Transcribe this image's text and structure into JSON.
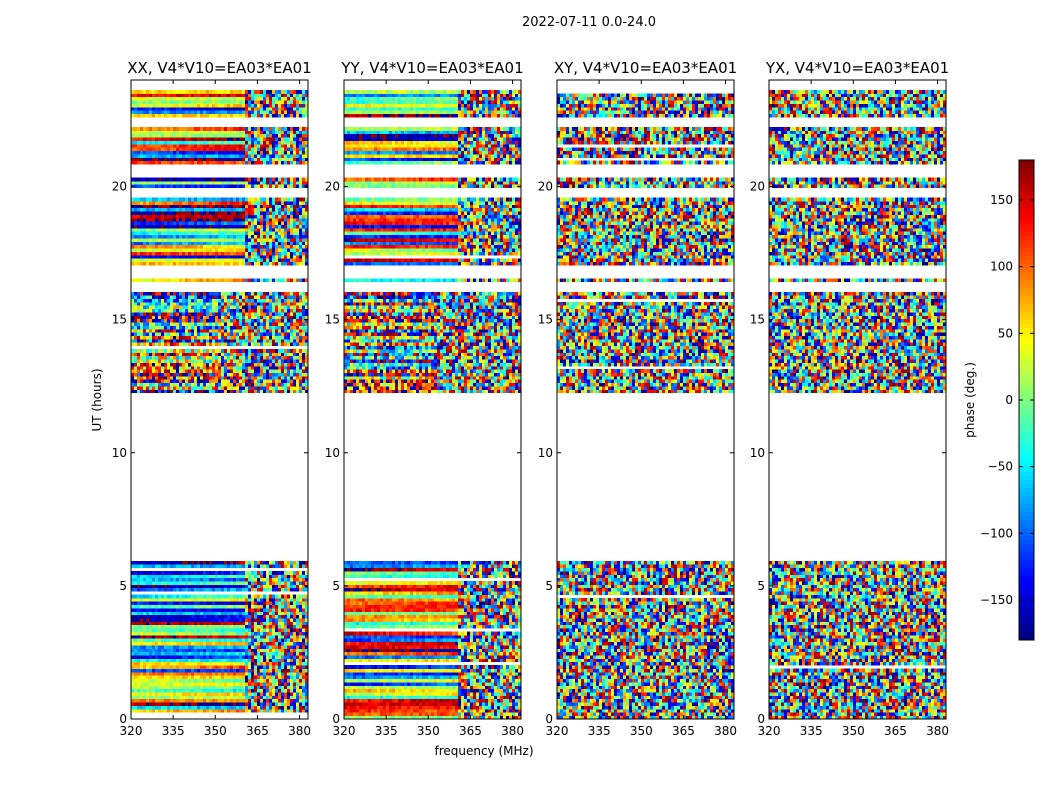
{
  "chart_data": {
    "type": "heatmap",
    "title": "2022-07-11 0.0-24.0",
    "xlabel": "frequency (MHz)",
    "ylabel": "UT (hours)",
    "xlim": [
      320,
      383
    ],
    "ylim": [
      0,
      24
    ],
    "x_ticks": [
      320,
      335,
      350,
      365,
      380
    ],
    "y_ticks": [
      0,
      5,
      10,
      15,
      20
    ],
    "colormap": "jet",
    "colorbar": {
      "label": "phase (deg.)",
      "range": [
        -180,
        180
      ],
      "ticks": [
        -150,
        -100,
        -50,
        0,
        50,
        100,
        150
      ],
      "tick_labels": [
        "−150",
        "−100",
        "−50",
        "0",
        "50",
        "100",
        "150"
      ]
    },
    "data_gaps_ut": [
      [
        0.0,
        0.05
      ],
      [
        5.95,
        12.2
      ],
      [
        16.0,
        16.4
      ],
      [
        16.6,
        17.0
      ],
      [
        19.6,
        20.0
      ],
      [
        20.4,
        20.9
      ],
      [
        22.2,
        22.6
      ],
      [
        23.6,
        24.0
      ]
    ],
    "panels": [
      {
        "title": "XX, V4*V10=EA03*EA01",
        "pattern": "coherent"
      },
      {
        "title": "YY, V4*V10=EA03*EA01",
        "pattern": "coherent"
      },
      {
        "title": "XY, V4*V10=EA03*EA01",
        "pattern": "noise"
      },
      {
        "title": "YX, V4*V10=EA03*EA01",
        "pattern": "noise"
      }
    ]
  }
}
